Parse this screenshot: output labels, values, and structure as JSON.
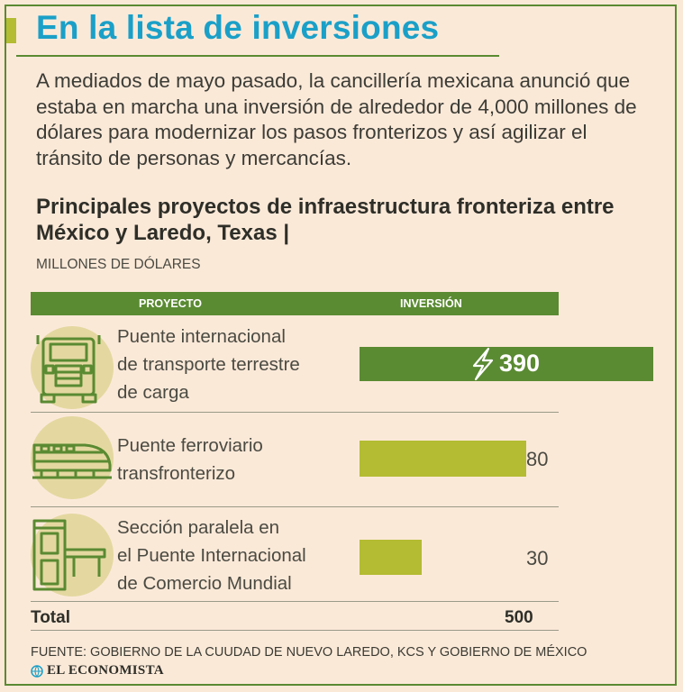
{
  "header": {
    "title": "En la lista de inversiones",
    "intro": "A mediados de mayo pasado, la cancillería mexicana anunció que estaba en marcha una inversión de alrededor de 4,000 millones de dólares para modernizar los pasos fronterizos y así agilizar el tránsito de personas y mercancías."
  },
  "colors": {
    "title": "#1aa0c8",
    "accent_green": "#5a8a32",
    "lime": "#b3bc32",
    "icon_circle": "#e4d8a0",
    "background": "#fbe9d8"
  },
  "chart_data": {
    "type": "bar",
    "title": "Principales proyectos de infraestructura fronteriza entre México y Laredo, Texas |",
    "unit_label": "MILLONES DE DÓLARES",
    "column_headers": [
      "PROYECTO",
      "INVERSIÓN"
    ],
    "categories": [
      "Puente internacional de transporte terrestre de carga",
      "Puente ferroviario transfronterizo",
      "Sección paralela en el Puente Internacional de Comercio Mundial"
    ],
    "category_lines": [
      [
        "Puente internacional",
        "de transporte terrestre",
        "de carga"
      ],
      [
        "Puente ferroviario",
        "transfronterizo"
      ],
      [
        "Sección paralela en",
        "el Puente Internacional",
        "de Comercio Mundial"
      ]
    ],
    "values": [
      390,
      80,
      30
    ],
    "value_labels": [
      "390",
      "80",
      "30"
    ],
    "icons": [
      "truck-icon",
      "train-icon",
      "border-booth-icon"
    ],
    "total_label": "Total",
    "total_value": "500"
  },
  "footer": {
    "source": "FUENTE: GOBIERNO DE LA CUUDAD DE NUEVO LAREDO, KCS Y GOBIERNO DE MÉXICO",
    "brand": "EL ECONOMISTA"
  }
}
